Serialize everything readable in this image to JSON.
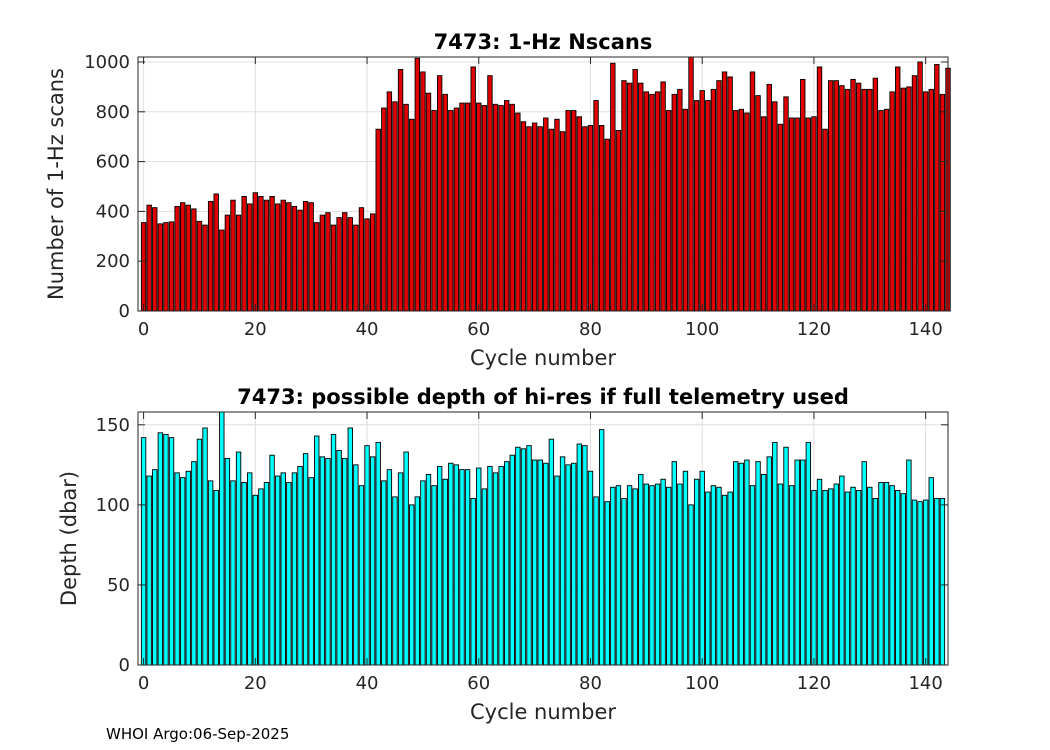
{
  "footer": "WHOI Argo:06-Sep-2025",
  "chart_data": [
    {
      "type": "bar",
      "title": "7473: 1-Hz Nscans",
      "xlabel": "Cycle number",
      "ylabel": "Number of 1-Hz scans",
      "xlim": [
        -1,
        144
      ],
      "ylim": [
        0,
        1020
      ],
      "xticks": [
        0,
        20,
        40,
        60,
        80,
        100,
        120,
        140
      ],
      "yticks": [
        0,
        200,
        400,
        600,
        800,
        1000
      ],
      "grid": true,
      "bar_color": "#e00000",
      "x_start": 0,
      "values": [
        355,
        425,
        415,
        350,
        355,
        358,
        420,
        435,
        425,
        410,
        360,
        345,
        440,
        470,
        325,
        385,
        445,
        385,
        460,
        430,
        475,
        460,
        445,
        460,
        430,
        445,
        435,
        420,
        405,
        440,
        435,
        355,
        385,
        395,
        345,
        375,
        395,
        375,
        345,
        415,
        370,
        390,
        730,
        815,
        880,
        840,
        970,
        830,
        770,
        1015,
        960,
        875,
        805,
        945,
        870,
        805,
        815,
        835,
        835,
        980,
        835,
        825,
        945,
        830,
        825,
        845,
        830,
        795,
        760,
        740,
        755,
        740,
        775,
        730,
        770,
        720,
        805,
        805,
        780,
        740,
        745,
        845,
        745,
        690,
        995,
        725,
        925,
        915,
        970,
        915,
        880,
        870,
        880,
        920,
        805,
        870,
        890,
        810,
        1020,
        845,
        885,
        845,
        890,
        925,
        960,
        940,
        805,
        810,
        795,
        960,
        865,
        780,
        910,
        840,
        750,
        860,
        775,
        775,
        930,
        775,
        780,
        980,
        730,
        925,
        925,
        905,
        890,
        930,
        915,
        890,
        890,
        935,
        805,
        810,
        880,
        980,
        895,
        900,
        945,
        1000,
        880,
        890,
        990,
        870,
        975
      ]
    },
    {
      "type": "bar",
      "title": "7473: possible depth of hi-res if full telemetry used",
      "xlabel": "Cycle number",
      "ylabel": "Depth (dbar)",
      "xlim": [
        -1,
        144
      ],
      "ylim": [
        0,
        158
      ],
      "xticks": [
        0,
        20,
        40,
        60,
        80,
        100,
        120,
        140
      ],
      "yticks": [
        0,
        50,
        100,
        150
      ],
      "grid": true,
      "bar_color": "#00ffff",
      "x_start": 0,
      "values": [
        142,
        118,
        122,
        145,
        144,
        142,
        120,
        117,
        121,
        127,
        141,
        148,
        115,
        109,
        158,
        129,
        115,
        133,
        114,
        120,
        106,
        110,
        114,
        131,
        118,
        120,
        114,
        120,
        124,
        132,
        117,
        143,
        130,
        129,
        144,
        134,
        129,
        148,
        125,
        112,
        137,
        130,
        139,
        115,
        122,
        105,
        120,
        133,
        100,
        105,
        115,
        119,
        112,
        124,
        116,
        126,
        125,
        122,
        122,
        104,
        123,
        110,
        124,
        120,
        124,
        127,
        131,
        136,
        135,
        137,
        128,
        128,
        126,
        141,
        118,
        130,
        125,
        126,
        138,
        137,
        121,
        105,
        147,
        102,
        111,
        112,
        104,
        112,
        110,
        119,
        113,
        112,
        113,
        116,
        111,
        127,
        113,
        121,
        100,
        116,
        121,
        108,
        112,
        111,
        106,
        108,
        127,
        126,
        128,
        112,
        127,
        119,
        130,
        139,
        113,
        136,
        112,
        128,
        128,
        139,
        109,
        116,
        109,
        110,
        113,
        118,
        108,
        111,
        109,
        127,
        111,
        104,
        114,
        114,
        112,
        109,
        107,
        128,
        103,
        102,
        103,
        117,
        104,
        104
      ]
    }
  ]
}
